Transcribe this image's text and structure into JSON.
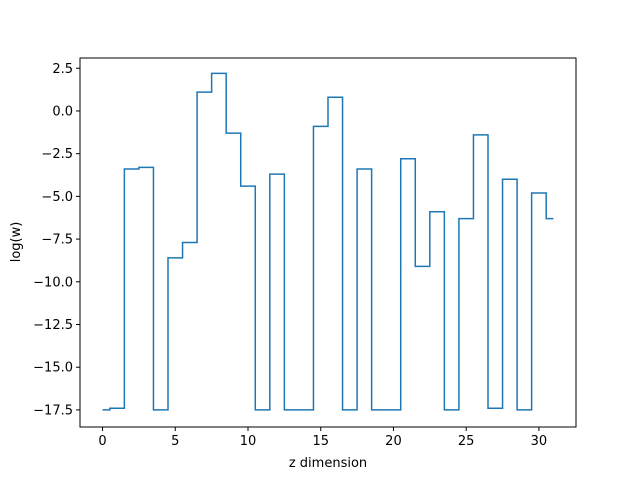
{
  "chart_data": {
    "type": "line",
    "drawstyle": "steps-mid",
    "title": "",
    "xlabel": "z dimension",
    "ylabel": "log(w)",
    "xlim": [
      -1.55,
      32.55
    ],
    "ylim": [
      -18.5,
      3.1
    ],
    "grid": false,
    "line_color": "#1f77b4",
    "x_ticks": [
      0,
      5,
      10,
      15,
      20,
      25,
      30
    ],
    "x_tick_labels": [
      "0",
      "5",
      "10",
      "15",
      "20",
      "25",
      "30"
    ],
    "y_ticks": [
      2.5,
      0.0,
      -2.5,
      -5.0,
      -7.5,
      -10.0,
      -12.5,
      -15.0,
      -17.5
    ],
    "y_tick_labels": [
      "2.5",
      "0.0",
      "−2.5",
      "−5.0",
      "−7.5",
      "−10.0",
      "−12.5",
      "−15.0",
      "−17.5"
    ],
    "series": [
      {
        "x": [
          0,
          1,
          2,
          3,
          4,
          5,
          6,
          7,
          8,
          9,
          10,
          11,
          12,
          13,
          14,
          15,
          16,
          17,
          18,
          19,
          20,
          21,
          22,
          23,
          24,
          25,
          26,
          27,
          28,
          29,
          30,
          31
        ],
        "values": [
          -17.5,
          -17.4,
          -3.4,
          -3.3,
          -17.5,
          -8.6,
          -7.7,
          1.1,
          2.2,
          -1.3,
          -4.4,
          -17.5,
          -3.7,
          -17.5,
          -17.5,
          -0.9,
          0.8,
          -17.5,
          -3.4,
          -17.5,
          -17.5,
          -2.8,
          -9.1,
          -5.9,
          -17.5,
          -6.3,
          -1.4,
          -17.4,
          -4.0,
          -17.5,
          -4.8,
          -6.3
        ]
      }
    ]
  }
}
